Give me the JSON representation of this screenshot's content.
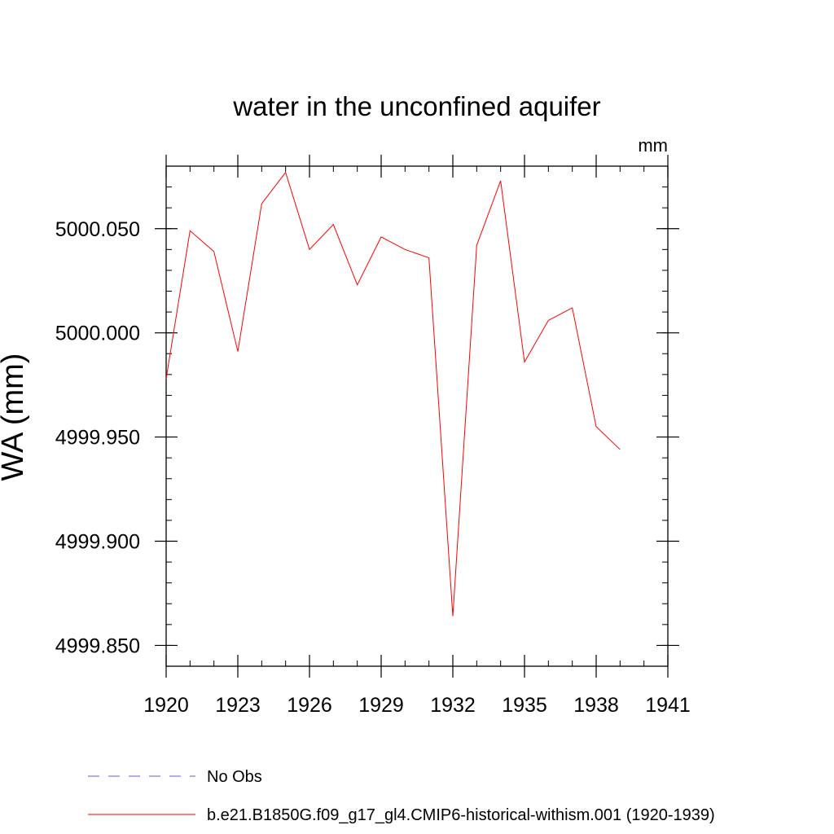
{
  "chart_data": {
    "type": "line",
    "title": "water in the unconfined aquifer",
    "units_label": "mm",
    "ylabel": "WA  (mm)",
    "xlabel": "",
    "xlim": [
      1920,
      1941
    ],
    "ylim": [
      4999.84,
      5000.08
    ],
    "x_ticks": [
      1920,
      1923,
      1926,
      1929,
      1932,
      1935,
      1938,
      1941
    ],
    "x_tick_labels": [
      "1920",
      "1923",
      "1926",
      "1929",
      "1932",
      "1935",
      "1938",
      "1941"
    ],
    "y_ticks": [
      4999.85,
      4999.9,
      4999.95,
      5000.0,
      5000.05
    ],
    "y_tick_labels": [
      "4999.850",
      "4999.900",
      "4999.950",
      "5000.000",
      "5000.050"
    ],
    "y_minor_step": 0.01,
    "x_minor_step": 1,
    "grid": false,
    "legend_position": "bottom-left",
    "series": [
      {
        "name": "No Obs",
        "color": "#6a5acd",
        "dash": "dashed",
        "x": [],
        "values": []
      },
      {
        "name": "b.e21.B1850G.f09_g17_gl4.CMIP6-historical-withism.001 (1920-1939)",
        "color": "#ff0000",
        "dash": "solid",
        "x": [
          1920,
          1921,
          1922,
          1923,
          1924,
          1925,
          1926,
          1927,
          1928,
          1929,
          1930,
          1931,
          1932,
          1933,
          1934,
          1935,
          1936,
          1937,
          1938,
          1939
        ],
        "values": [
          4999.978,
          5000.049,
          5000.039,
          4999.991,
          5000.062,
          5000.077,
          5000.04,
          5000.052,
          5000.023,
          5000.046,
          5000.04,
          5000.036,
          4999.864,
          5000.042,
          5000.073,
          4999.986,
          5000.006,
          5000.012,
          4999.955,
          4999.944
        ]
      }
    ]
  }
}
